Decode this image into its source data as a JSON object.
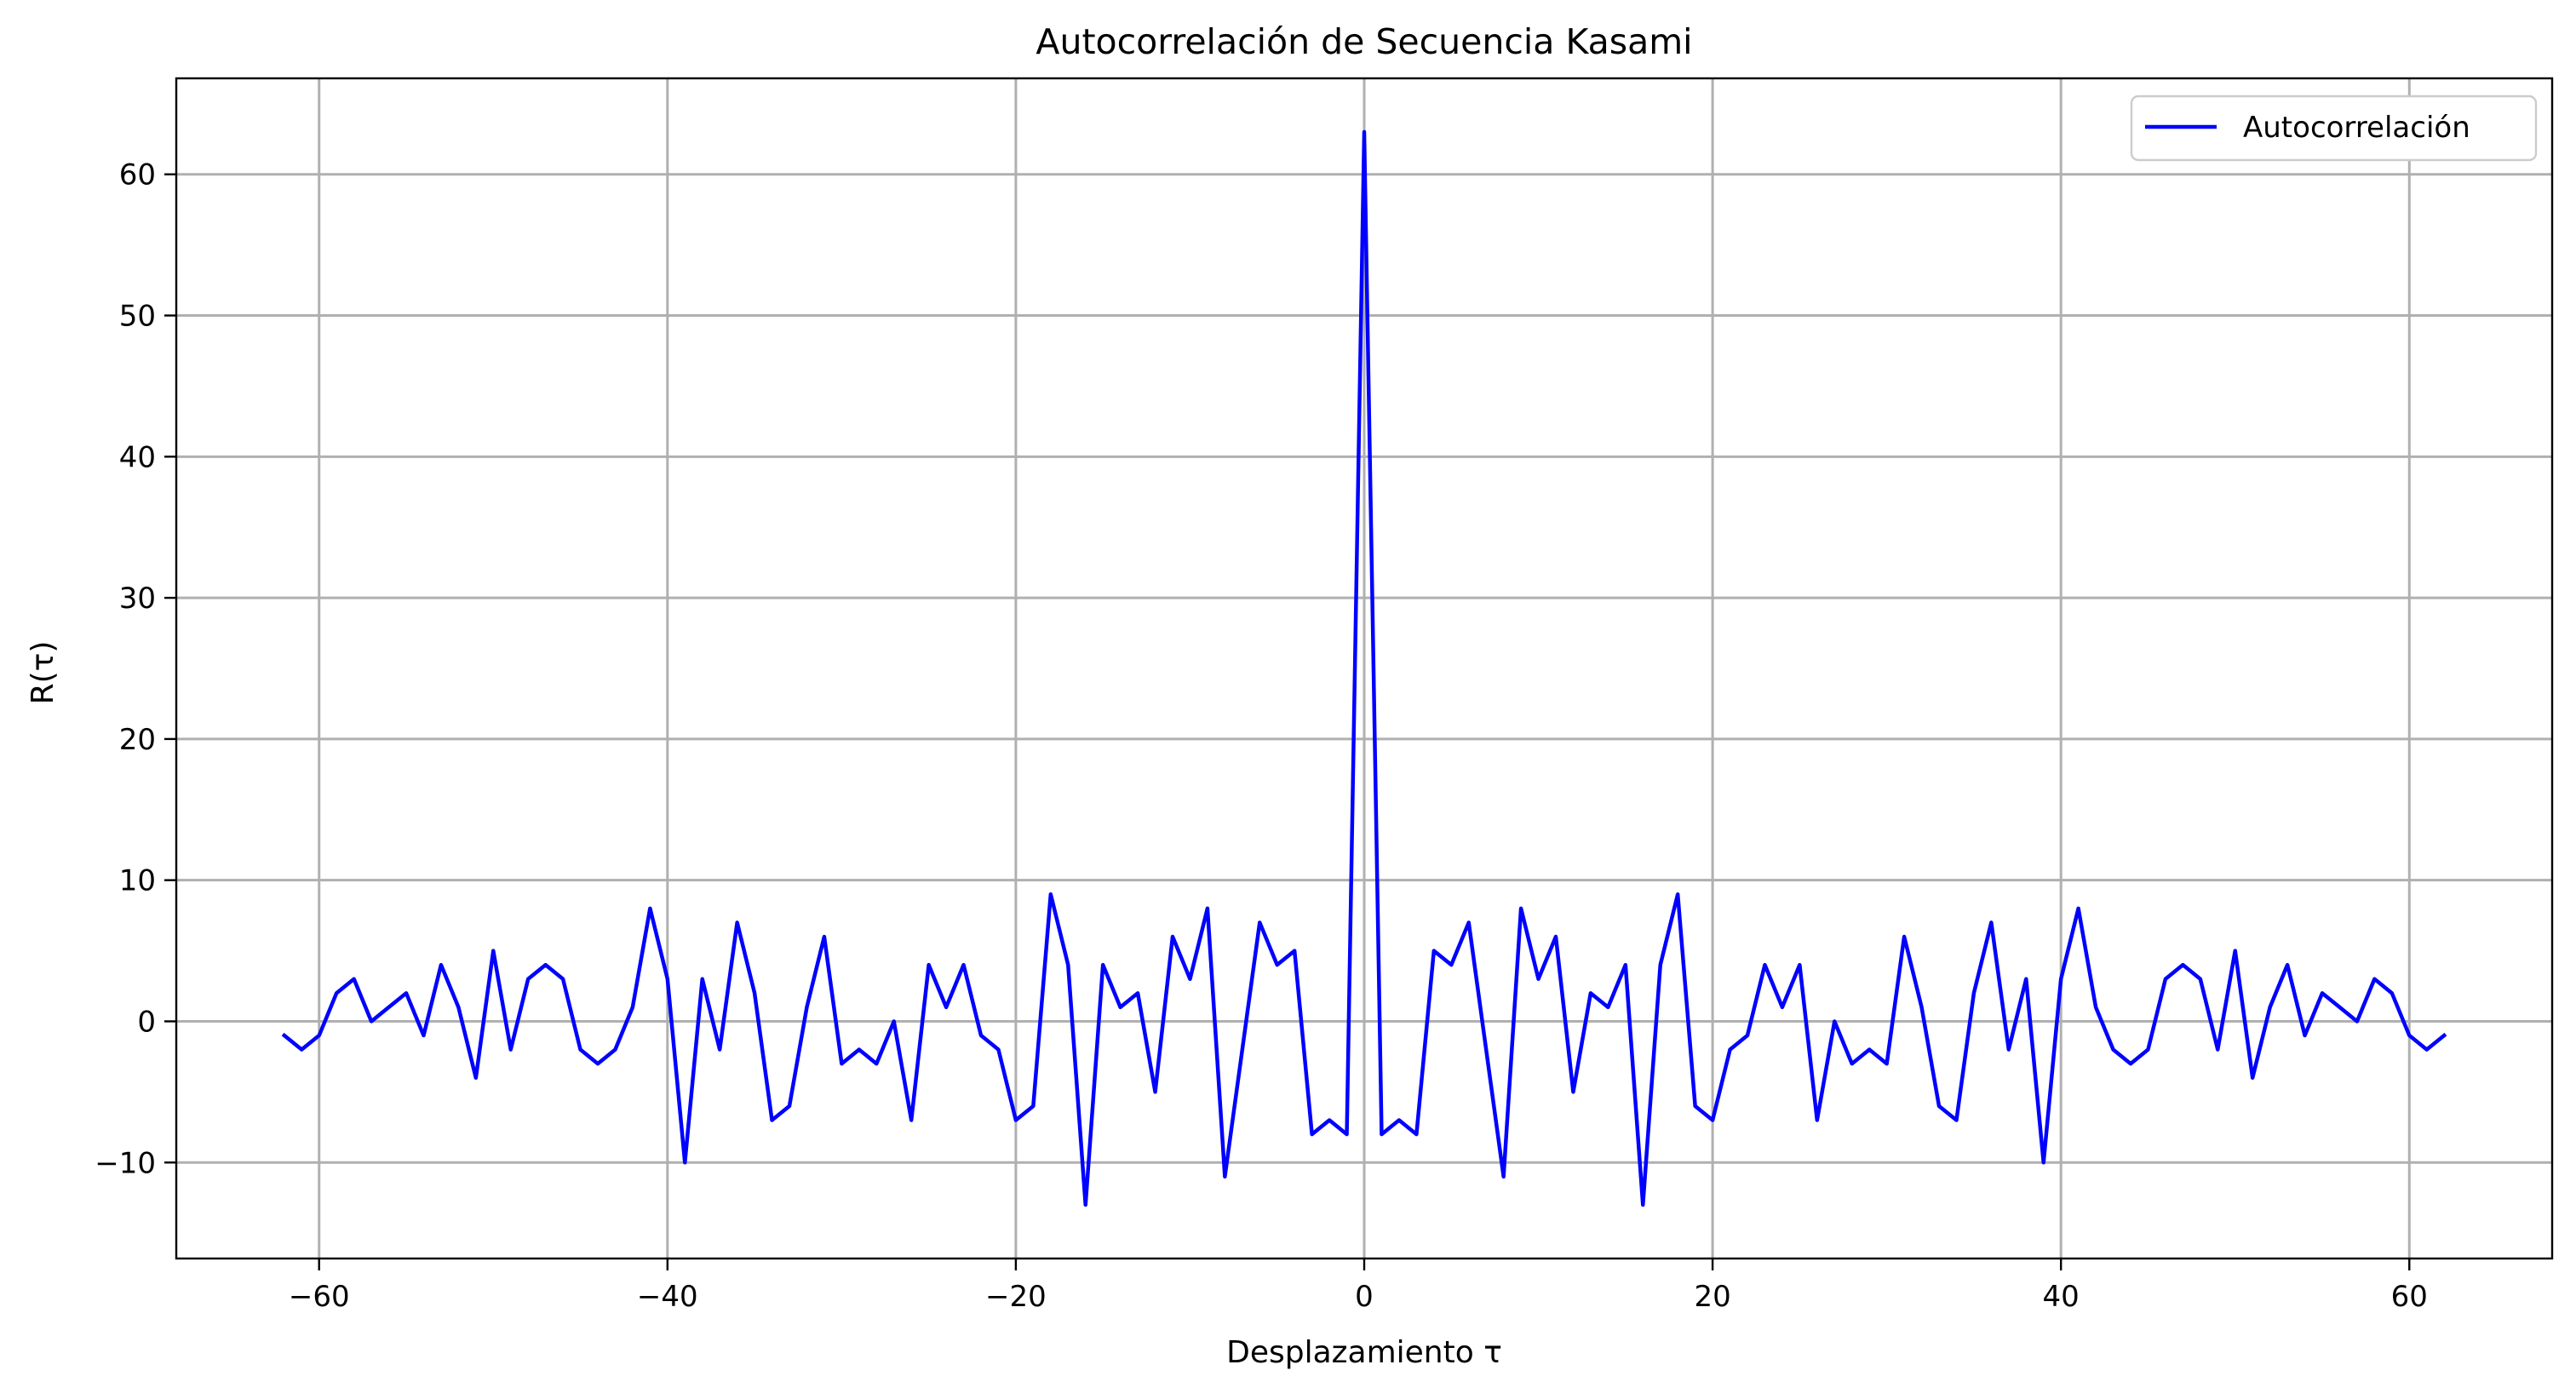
{
  "chart_data": {
    "type": "line",
    "title": "Autocorrelación de Secuencia Kasami",
    "xlabel": "Desplazamiento τ",
    "ylabel": "R(τ)",
    "xlim": [
      -68.2,
      68.2
    ],
    "ylim": [
      -16.8,
      66.8
    ],
    "xticks": [
      -60,
      -40,
      -20,
      0,
      20,
      40,
      60
    ],
    "yticks": [
      -10,
      0,
      10,
      20,
      30,
      40,
      50,
      60
    ],
    "xtick_labels": [
      "−60",
      "−40",
      "−20",
      "0",
      "20",
      "40",
      "60"
    ],
    "ytick_labels": [
      "−10",
      "0",
      "10",
      "20",
      "30",
      "40",
      "50",
      "60"
    ],
    "grid": true,
    "legend_position": "top-right",
    "series": [
      {
        "name": "Autocorrelación",
        "color": "#0000ff",
        "x": [
          -62,
          -61,
          -60,
          -59,
          -58,
          -57,
          -56,
          -55,
          -54,
          -53,
          -52,
          -51,
          -50,
          -49,
          -48,
          -47,
          -46,
          -45,
          -44,
          -43,
          -42,
          -41,
          -40,
          -39,
          -38,
          -37,
          -36,
          -35,
          -34,
          -33,
          -32,
          -31,
          -30,
          -29,
          -28,
          -27,
          -26,
          -25,
          -24,
          -23,
          -22,
          -21,
          -20,
          -19,
          -18,
          -17,
          -16,
          -15,
          -14,
          -13,
          -12,
          -11,
          -10,
          -9,
          -8,
          -7,
          -6,
          -5,
          -4,
          -3,
          -2,
          -1,
          0,
          1,
          2,
          3,
          4,
          5,
          6,
          7,
          8,
          9,
          10,
          11,
          12,
          13,
          14,
          15,
          16,
          17,
          18,
          19,
          20,
          21,
          22,
          23,
          24,
          25,
          26,
          27,
          28,
          29,
          30,
          31,
          32,
          33,
          34,
          35,
          36,
          37,
          38,
          39,
          40,
          41,
          42,
          43,
          44,
          45,
          46,
          47,
          48,
          49,
          50,
          51,
          52,
          53,
          54,
          55,
          56,
          57,
          58,
          59,
          60,
          61,
          62
        ],
        "y": [
          -1,
          -2,
          -1,
          2,
          3,
          0,
          1,
          2,
          -1,
          4,
          1,
          -4,
          5,
          -2,
          3,
          4,
          3,
          -2,
          -3,
          -2,
          1,
          8,
          3,
          -10,
          3,
          -2,
          7,
          2,
          -7,
          -6,
          1,
          6,
          -3,
          -2,
          -3,
          0,
          -7,
          4,
          1,
          4,
          -1,
          -2,
          -7,
          -6,
          9,
          4,
          -13,
          4,
          1,
          2,
          -5,
          6,
          3,
          8,
          -11,
          -2,
          7,
          4,
          5,
          -8,
          -7,
          -8,
          63,
          -8,
          -7,
          -8,
          5,
          4,
          7,
          -2,
          -11,
          8,
          3,
          6,
          -5,
          2,
          1,
          4,
          -13,
          4,
          9,
          -6,
          -7,
          -2,
          -1,
          4,
          1,
          4,
          -7,
          0,
          -3,
          -2,
          -3,
          6,
          1,
          -6,
          -7,
          2,
          7,
          -2,
          3,
          -10,
          3,
          8,
          1,
          -2,
          -3,
          -2,
          3,
          4,
          3,
          -2,
          5,
          -4,
          1,
          4,
          -1,
          2,
          1,
          0,
          3,
          2,
          -1,
          -2,
          -1
        ]
      }
    ]
  }
}
